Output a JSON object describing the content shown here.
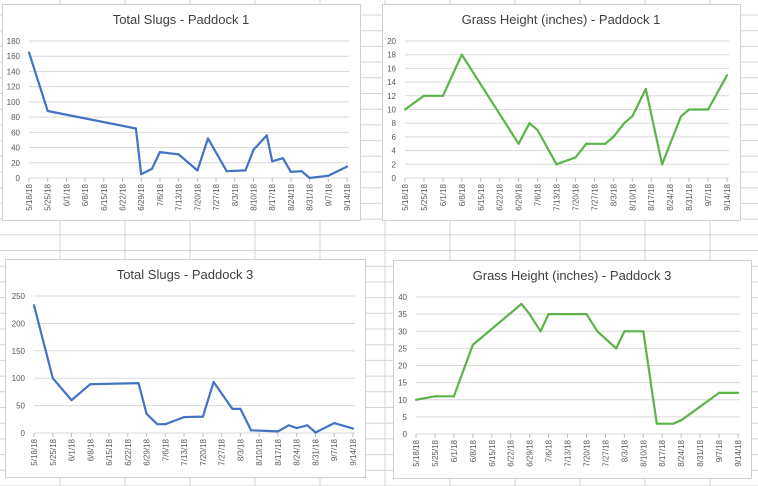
{
  "colors": {
    "slugs": "#4472c4",
    "grass": "#5bb34a",
    "grid": "#d9d9d9",
    "sheet_grid": "#d4d4d4"
  },
  "chart_data": [
    {
      "type": "line",
      "title": "Total Slugs  - Paddock 1",
      "xlabel": "",
      "ylabel": "",
      "x_ticks": [
        "5/18/18",
        "5/25/18",
        "6/1/18",
        "6/8/18",
        "6/15/18",
        "6/22/18",
        "6/29/18",
        "7/6/18",
        "7/13/18",
        "7/20/18",
        "7/27/18",
        "8/3/18",
        "8/10/18",
        "8/17/18",
        "8/24/18",
        "8/31/18",
        "9/7/18",
        "9/14/18"
      ],
      "x_unit": "days since 5/18/18",
      "ylim": [
        0,
        180
      ],
      "y_ticks": [
        0,
        20,
        40,
        60,
        80,
        100,
        120,
        140,
        160,
        180
      ],
      "grid": true,
      "legend": "none",
      "series": [
        {
          "name": "Total Slugs",
          "color": "#4472c4",
          "points": [
            [
              0,
              165
            ],
            [
              7,
              88
            ],
            [
              40,
              65
            ],
            [
              42,
              5
            ],
            [
              46,
              12
            ],
            [
              49,
              34
            ],
            [
              56,
              31
            ],
            [
              63,
              10
            ],
            [
              67,
              52
            ],
            [
              74,
              9
            ],
            [
              81,
              10
            ],
            [
              84,
              37
            ],
            [
              89,
              56
            ],
            [
              91,
              22
            ],
            [
              95,
              26
            ],
            [
              98,
              8
            ],
            [
              102,
              9
            ],
            [
              105,
              0
            ],
            [
              112,
              3
            ],
            [
              119,
              15
            ]
          ]
        }
      ]
    },
    {
      "type": "line",
      "title": "Grass Height (inches) - Paddock 1",
      "xlabel": "",
      "ylabel": "",
      "x_ticks": [
        "5/18/18",
        "5/25/18",
        "6/1/18",
        "6/8/18",
        "6/15/18",
        "6/22/18",
        "6/29/18",
        "7/6/18",
        "7/13/18",
        "7/20/18",
        "7/27/18",
        "8/3/18",
        "8/10/18",
        "8/17/18",
        "8/24/18",
        "8/31/18",
        "9/7/18",
        "9/14/18"
      ],
      "x_unit": "days since 5/18/18",
      "ylim": [
        0,
        20
      ],
      "y_ticks": [
        0,
        2,
        4,
        6,
        8,
        10,
        12,
        14,
        16,
        18,
        20
      ],
      "grid": true,
      "legend": "none",
      "series": [
        {
          "name": "Grass Height",
          "color": "#5bb34a",
          "points": [
            [
              0,
              10
            ],
            [
              7,
              12
            ],
            [
              14,
              12
            ],
            [
              21,
              18
            ],
            [
              42,
              5
            ],
            [
              46,
              8
            ],
            [
              49,
              7
            ],
            [
              56,
              2
            ],
            [
              63,
              3
            ],
            [
              67,
              5
            ],
            [
              74,
              5
            ],
            [
              77,
              6
            ],
            [
              81,
              8
            ],
            [
              84,
              9
            ],
            [
              89,
              13
            ],
            [
              95,
              2
            ],
            [
              102,
              9
            ],
            [
              105,
              10
            ],
            [
              112,
              10
            ],
            [
              119,
              15
            ]
          ]
        }
      ]
    },
    {
      "type": "line",
      "title": "Total Slugs - Paddock 3",
      "xlabel": "",
      "ylabel": "",
      "x_ticks": [
        "5/18/18",
        "5/25/18",
        "6/1/18",
        "6/8/18",
        "6/15/18",
        "6/22/18",
        "6/29/18",
        "7/6/18",
        "7/13/18",
        "7/20/18",
        "7/27/18",
        "8/3/18",
        "8/10/18",
        "8/17/18",
        "8/24/18",
        "8/31/18",
        "9/7/18",
        "9/14/18"
      ],
      "x_unit": "days since 5/18/18",
      "ylim": [
        0,
        250
      ],
      "y_ticks": [
        0,
        50,
        100,
        150,
        200,
        250
      ],
      "grid": true,
      "legend": "none",
      "series": [
        {
          "name": "Total Slugs",
          "color": "#4472c4",
          "points": [
            [
              0,
              233
            ],
            [
              7,
              100
            ],
            [
              14,
              60
            ],
            [
              21,
              89
            ],
            [
              39,
              91
            ],
            [
              42,
              35
            ],
            [
              46,
              16
            ],
            [
              49,
              16
            ],
            [
              56,
              29
            ],
            [
              63,
              30
            ],
            [
              67,
              93
            ],
            [
              74,
              44
            ],
            [
              77,
              44
            ],
            [
              81,
              5
            ],
            [
              91,
              3
            ],
            [
              95,
              14
            ],
            [
              98,
              9
            ],
            [
              102,
              14
            ],
            [
              105,
              1
            ],
            [
              112,
              18
            ],
            [
              119,
              8
            ]
          ]
        }
      ]
    },
    {
      "type": "line",
      "title": "Grass Height (inches) - Paddock 3",
      "xlabel": "",
      "ylabel": "",
      "x_ticks": [
        "5/18/18",
        "5/25/18",
        "6/1/18",
        "6/8/18",
        "6/15/18",
        "6/22/18",
        "6/29/18",
        "7/6/18",
        "7/13/18",
        "7/20/18",
        "7/27/18",
        "8/3/18",
        "8/10/18",
        "8/17/18",
        "8/24/18",
        "8/31/18",
        "9/7/18",
        "9/14/18"
      ],
      "x_unit": "days since 5/18/18",
      "ylim": [
        0,
        40
      ],
      "y_ticks": [
        0,
        5,
        10,
        15,
        20,
        25,
        30,
        35,
        40
      ],
      "grid": true,
      "legend": "none",
      "series": [
        {
          "name": "Grass Height",
          "color": "#5bb34a",
          "points": [
            [
              0,
              10
            ],
            [
              7,
              11
            ],
            [
              14,
              11
            ],
            [
              21,
              26
            ],
            [
              39,
              38
            ],
            [
              42,
              35
            ],
            [
              46,
              30
            ],
            [
              49,
              35
            ],
            [
              63,
              35
            ],
            [
              67,
              30
            ],
            [
              74,
              25
            ],
            [
              77,
              30
            ],
            [
              84,
              30
            ],
            [
              89,
              3
            ],
            [
              95,
              3
            ],
            [
              98,
              4
            ],
            [
              105,
              8
            ],
            [
              112,
              12
            ],
            [
              119,
              12
            ]
          ]
        }
      ]
    }
  ]
}
